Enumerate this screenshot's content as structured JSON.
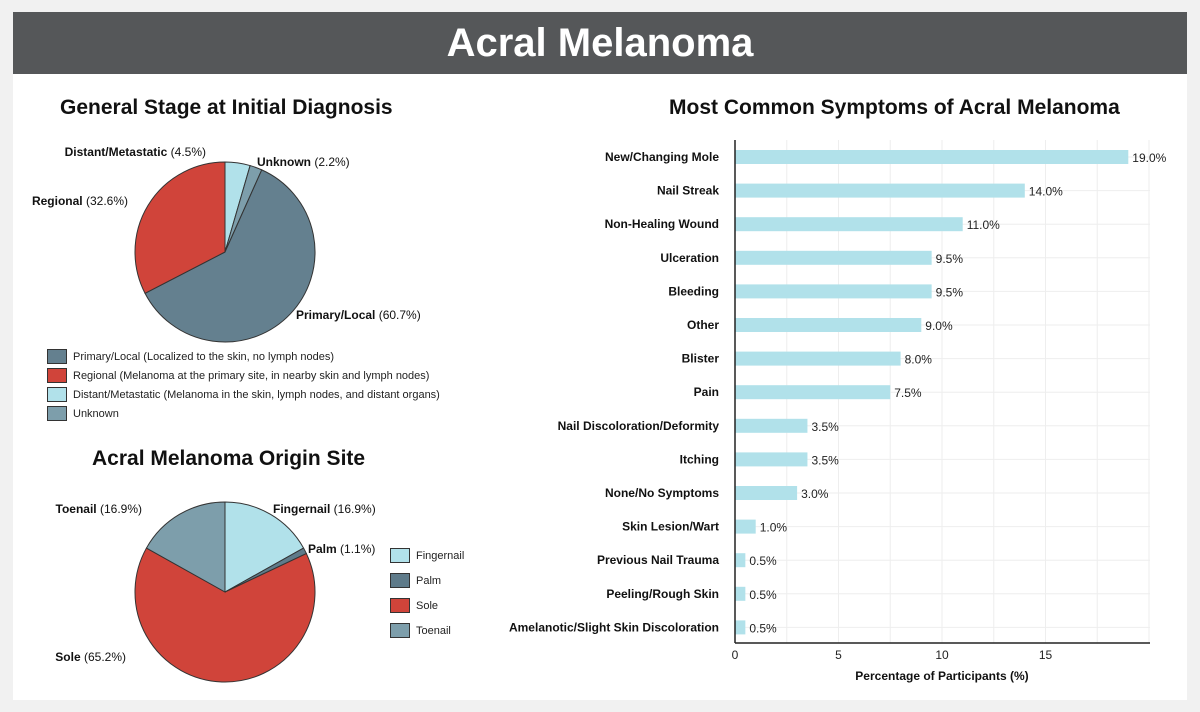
{
  "title": "Acral Melanoma",
  "chart_data": [
    {
      "type": "pie",
      "title": "General Stage at Initial Diagnosis",
      "slices": [
        {
          "label": "Distant/Metastatic",
          "value": 4.5,
          "color": "#b1e1ea",
          "legend": "Distant/Metastatic (Melanoma in the skin, lymph nodes, and distant organs)"
        },
        {
          "label": "Unknown",
          "value": 2.2,
          "color": "#7d9eab",
          "legend": "Unknown"
        },
        {
          "label": "Primary/Local",
          "value": 60.7,
          "color": "#64808f",
          "legend": "Primary/Local (Localized to the skin, no lymph nodes)"
        },
        {
          "label": "Regional",
          "value": 32.6,
          "color": "#d0443a",
          "legend": "Regional (Melanoma at the primary site, in nearby skin and lymph nodes)"
        }
      ],
      "legend_order": [
        2,
        3,
        0,
        1
      ]
    },
    {
      "type": "pie",
      "title": "Acral Melanoma Origin Site",
      "slices": [
        {
          "label": "Fingernail",
          "value": 16.9,
          "color": "#b1e1ea",
          "legend": "Fingernail"
        },
        {
          "label": "Palm",
          "value": 1.1,
          "color": "#5f7b8a",
          "legend": "Palm"
        },
        {
          "label": "Sole",
          "value": 65.2,
          "color": "#d0443a",
          "legend": "Sole"
        },
        {
          "label": "Toenail",
          "value": 16.9,
          "color": "#7d9eab",
          "legend": "Toenail"
        }
      ],
      "legend_order": [
        0,
        1,
        2,
        3
      ]
    },
    {
      "type": "bar",
      "orientation": "horizontal",
      "title": "Most Common Symptoms of Acral Melanoma",
      "xlabel": "Percentage of Participants (%)",
      "xlim": [
        0,
        20
      ],
      "xticks": [
        0,
        5,
        10,
        15
      ],
      "grid": true,
      "color": "#b1e1ea",
      "categories": [
        "New/Changing Mole",
        "Nail Streak",
        "Non-Healing Wound",
        "Ulceration",
        "Bleeding",
        "Other",
        "Blister",
        "Pain",
        "Nail Discoloration/Deformity",
        "Itching",
        "None/No Symptoms",
        "Skin Lesion/Wart",
        "Previous Nail Trauma",
        "Peeling/Rough Skin",
        "Amelanotic/Slight Skin Discoloration"
      ],
      "values": [
        19.0,
        14.0,
        11.0,
        9.5,
        9.5,
        9.0,
        8.0,
        7.5,
        3.5,
        3.5,
        3.0,
        1.0,
        0.5,
        0.5,
        0.5
      ]
    }
  ]
}
